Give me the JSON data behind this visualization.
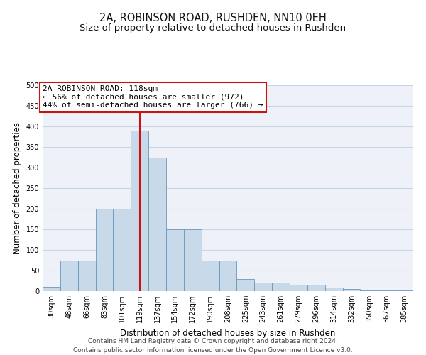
{
  "title": "2A, ROBINSON ROAD, RUSHDEN, NN10 0EH",
  "subtitle": "Size of property relative to detached houses in Rushden",
  "xlabel": "Distribution of detached houses by size in Rushden",
  "ylabel": "Number of detached properties",
  "categories": [
    "30sqm",
    "48sqm",
    "66sqm",
    "83sqm",
    "101sqm",
    "119sqm",
    "137sqm",
    "154sqm",
    "172sqm",
    "190sqm",
    "208sqm",
    "225sqm",
    "243sqm",
    "261sqm",
    "279sqm",
    "296sqm",
    "314sqm",
    "332sqm",
    "350sqm",
    "367sqm",
    "385sqm"
  ],
  "values": [
    10,
    75,
    75,
    200,
    200,
    390,
    325,
    150,
    150,
    75,
    75,
    30,
    20,
    20,
    15,
    15,
    8,
    5,
    2,
    1,
    1
  ],
  "bar_color": "#c8d9ea",
  "bar_edge_color": "#6699bb",
  "grid_color": "#c5d5e5",
  "background_color": "#eef2f8",
  "vline_x_index": 5,
  "vline_color": "#cc1111",
  "annotation_text": "2A ROBINSON ROAD: 118sqm\n← 56% of detached houses are smaller (972)\n44% of semi-detached houses are larger (766) →",
  "annotation_box_facecolor": "#ffffff",
  "annotation_box_edgecolor": "#cc1111",
  "footer1": "Contains HM Land Registry data © Crown copyright and database right 2024.",
  "footer2": "Contains public sector information licensed under the Open Government Licence v3.0.",
  "ylim": [
    0,
    500
  ],
  "yticks": [
    0,
    50,
    100,
    150,
    200,
    250,
    300,
    350,
    400,
    450,
    500
  ],
  "title_fontsize": 10.5,
  "subtitle_fontsize": 9.5,
  "xlabel_fontsize": 8.5,
  "ylabel_fontsize": 8.5,
  "tick_fontsize": 7,
  "annotation_fontsize": 8,
  "footer_fontsize": 6.5
}
